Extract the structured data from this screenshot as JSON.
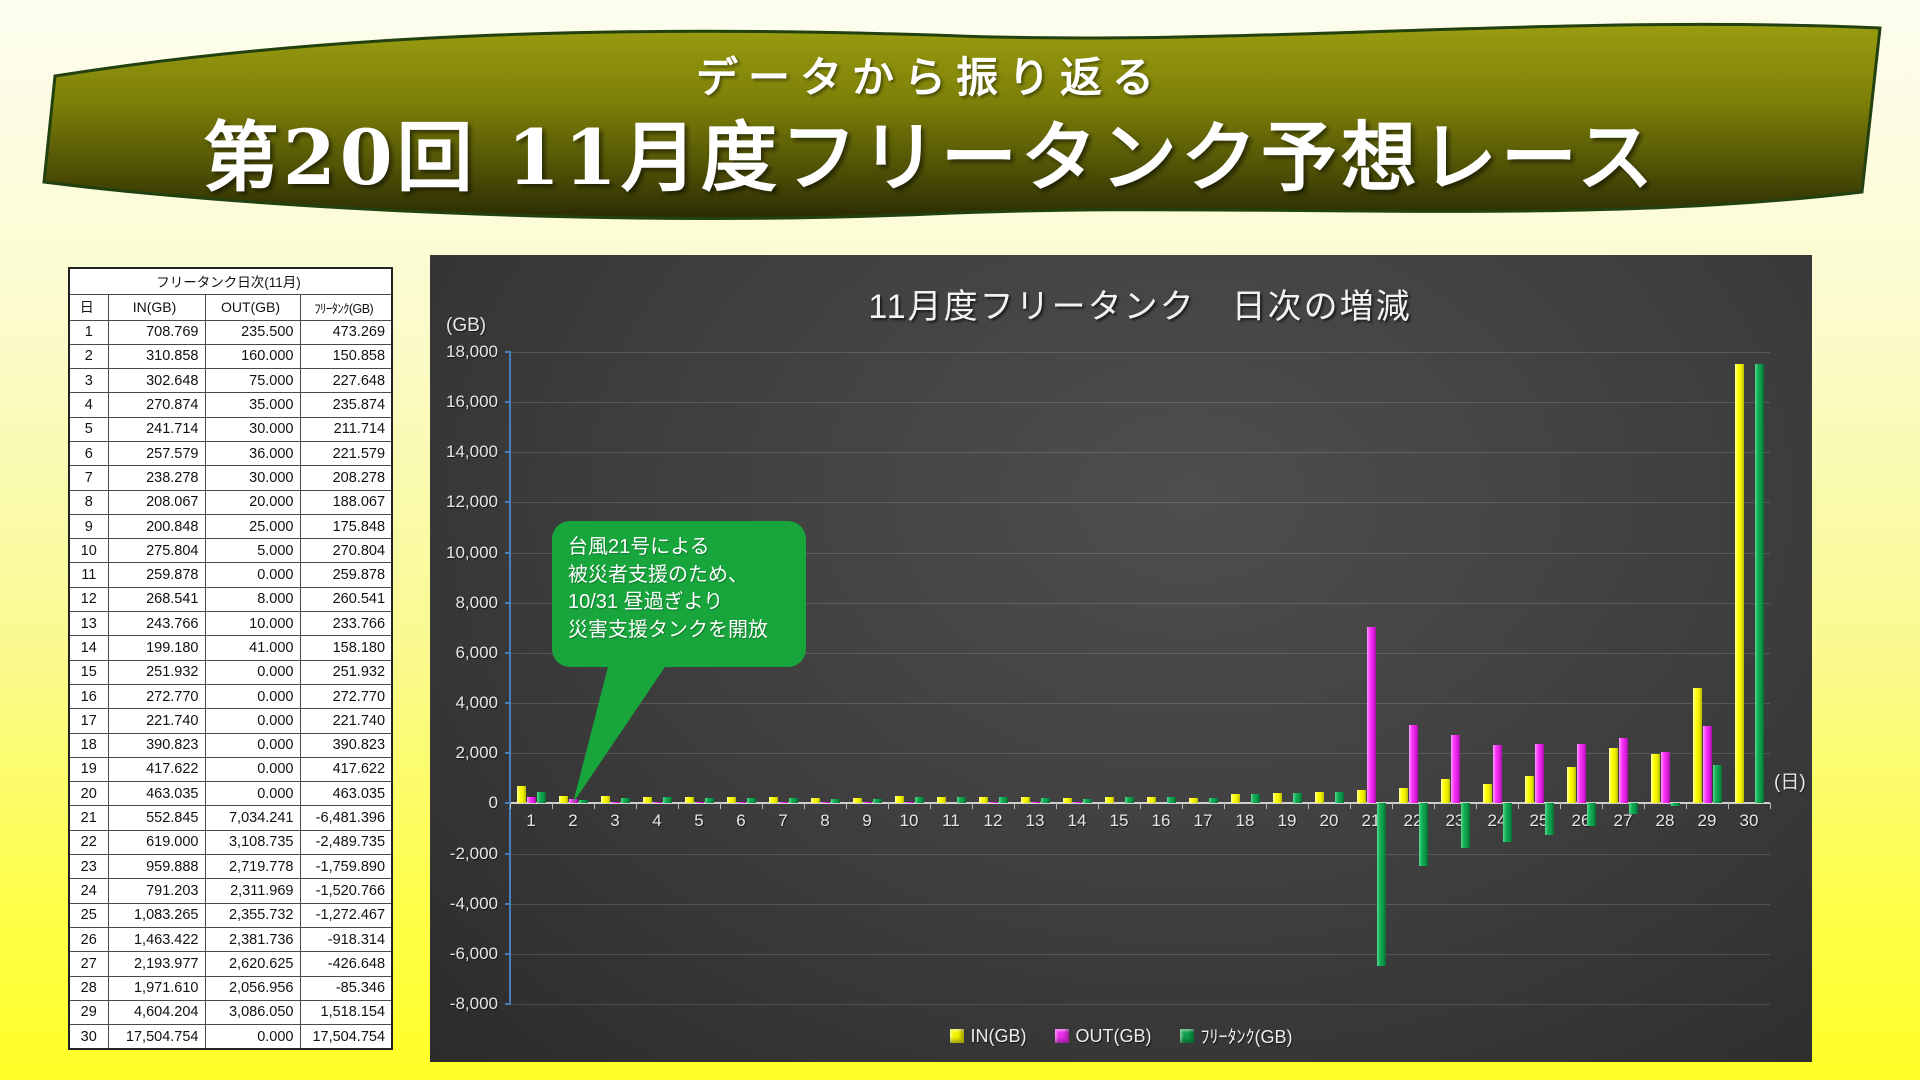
{
  "banner": {
    "subtitle": "データから振り返る",
    "title": "第20回 11月度フリータンク予想レース"
  },
  "table": {
    "title": "フリータンク日次(11月)",
    "columns": [
      "日",
      "IN(GB)",
      "OUT(GB)",
      "ﾌﾘｰﾀﾝｸ(GB)"
    ],
    "rows": [
      [
        "1",
        "708.769",
        "235.500",
        "473.269"
      ],
      [
        "2",
        "310.858",
        "160.000",
        "150.858"
      ],
      [
        "3",
        "302.648",
        "75.000",
        "227.648"
      ],
      [
        "4",
        "270.874",
        "35.000",
        "235.874"
      ],
      [
        "5",
        "241.714",
        "30.000",
        "211.714"
      ],
      [
        "6",
        "257.579",
        "36.000",
        "221.579"
      ],
      [
        "7",
        "238.278",
        "30.000",
        "208.278"
      ],
      [
        "8",
        "208.067",
        "20.000",
        "188.067"
      ],
      [
        "9",
        "200.848",
        "25.000",
        "175.848"
      ],
      [
        "10",
        "275.804",
        "5.000",
        "270.804"
      ],
      [
        "11",
        "259.878",
        "0.000",
        "259.878"
      ],
      [
        "12",
        "268.541",
        "8.000",
        "260.541"
      ],
      [
        "13",
        "243.766",
        "10.000",
        "233.766"
      ],
      [
        "14",
        "199.180",
        "41.000",
        "158.180"
      ],
      [
        "15",
        "251.932",
        "0.000",
        "251.932"
      ],
      [
        "16",
        "272.770",
        "0.000",
        "272.770"
      ],
      [
        "17",
        "221.740",
        "0.000",
        "221.740"
      ],
      [
        "18",
        "390.823",
        "0.000",
        "390.823"
      ],
      [
        "19",
        "417.622",
        "0.000",
        "417.622"
      ],
      [
        "20",
        "463.035",
        "0.000",
        "463.035"
      ],
      [
        "21",
        "552.845",
        "7,034.241",
        "-6,481.396"
      ],
      [
        "22",
        "619.000",
        "3,108.735",
        "-2,489.735"
      ],
      [
        "23",
        "959.888",
        "2,719.778",
        "-1,759.890"
      ],
      [
        "24",
        "791.203",
        "2,311.969",
        "-1,520.766"
      ],
      [
        "25",
        "1,083.265",
        "2,355.732",
        "-1,272.467"
      ],
      [
        "26",
        "1,463.422",
        "2,381.736",
        "-918.314"
      ],
      [
        "27",
        "2,193.977",
        "2,620.625",
        "-426.648"
      ],
      [
        "28",
        "1,971.610",
        "2,056.956",
        "-85.346"
      ],
      [
        "29",
        "4,604.204",
        "3,086.050",
        "1,518.154"
      ],
      [
        "30",
        "17,504.754",
        "0.000",
        "17,504.754"
      ]
    ]
  },
  "chart_data": {
    "type": "bar",
    "title": "11月度フリータンク　日次の増減",
    "y_unit_label": "(GB)",
    "x_unit_label": "(日)",
    "categories": [
      1,
      2,
      3,
      4,
      5,
      6,
      7,
      8,
      9,
      10,
      11,
      12,
      13,
      14,
      15,
      16,
      17,
      18,
      19,
      20,
      21,
      22,
      23,
      24,
      25,
      26,
      27,
      28,
      29,
      30
    ],
    "series": [
      {
        "name": "IN(GB)",
        "color": "#f5f500",
        "values": [
          708.769,
          310.858,
          302.648,
          270.874,
          241.714,
          257.579,
          238.278,
          208.067,
          200.848,
          275.804,
          259.878,
          268.541,
          243.766,
          199.18,
          251.932,
          272.77,
          221.74,
          390.823,
          417.622,
          463.035,
          552.845,
          619.0,
          959.888,
          791.203,
          1083.265,
          1463.422,
          2193.977,
          1971.61,
          4604.204,
          17504.754
        ]
      },
      {
        "name": "OUT(GB)",
        "color": "#ee2fee",
        "values": [
          235.5,
          160.0,
          75.0,
          35.0,
          30.0,
          36.0,
          30.0,
          20.0,
          25.0,
          5.0,
          0,
          8.0,
          10.0,
          41.0,
          0,
          0,
          0,
          0,
          0,
          0,
          7034.241,
          3108.735,
          2719.778,
          2311.969,
          2355.732,
          2381.736,
          2620.625,
          2056.956,
          3086.05,
          0
        ]
      },
      {
        "name": "ﾌﾘｰﾀﾝｸ(GB)",
        "color": "#0fa04c",
        "values": [
          473.269,
          150.858,
          227.648,
          235.874,
          211.714,
          221.579,
          208.278,
          188.067,
          175.848,
          270.804,
          259.878,
          260.541,
          233.766,
          158.18,
          251.932,
          272.77,
          221.74,
          390.823,
          417.622,
          463.035,
          -6481.396,
          -2489.735,
          -1759.89,
          -1520.766,
          -1272.467,
          -918.314,
          -426.648,
          -85.346,
          1518.154,
          17504.754
        ]
      }
    ],
    "ylim": [
      -8000,
      18000
    ],
    "ytick_step": 2000,
    "grid": true,
    "legend_position": "bottom"
  },
  "callout": {
    "text": "台風21号による\n被災者支援のため、\n10/31 昼過ぎより\n災害支援タンクを開放",
    "color": "#18a53c"
  }
}
